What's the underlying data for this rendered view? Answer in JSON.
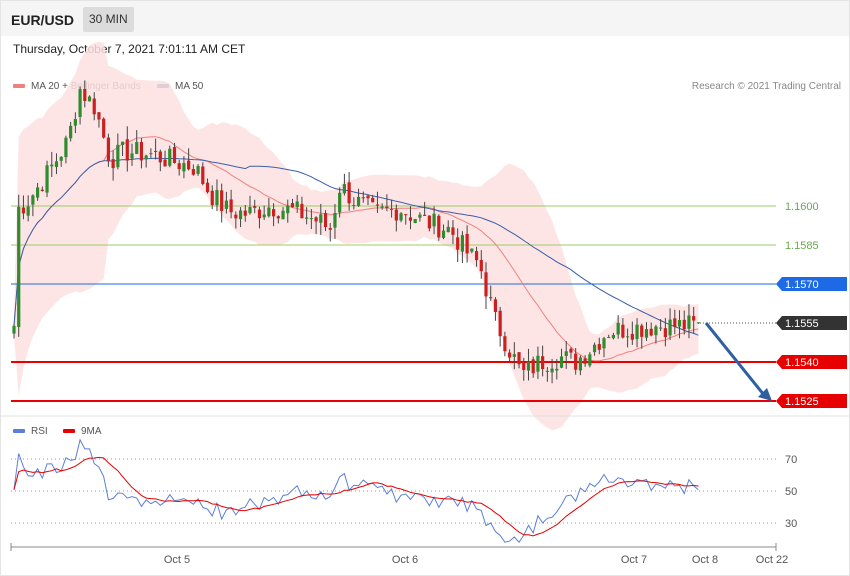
{
  "header": {
    "symbol": "EUR/USD",
    "timeframe": "30 MIN",
    "timestamp": "Thursday, October 7, 2021 7:01:11 AM CET"
  },
  "credit": "Research © 2021 Trading Central",
  "chart_data": {
    "type": "candlestick",
    "y_range": [
      1.1515,
      1.1705
    ],
    "x_labels": [
      "Oct 5",
      "Oct 6",
      "Oct 7",
      "Oct 8",
      "Oct 22"
    ],
    "legend": [
      {
        "name": "MA 20 + Bollinger Bands",
        "color": "#f08080"
      },
      {
        "name": "MA 50",
        "color": "#3a5fa8"
      }
    ],
    "levels": [
      {
        "value": 1.16,
        "label": "1.1600",
        "style": "pivot",
        "color": "#9ccc65"
      },
      {
        "value": 1.1585,
        "label": "1.1585",
        "style": "pivot",
        "color": "#9ccc65"
      },
      {
        "value": 1.157,
        "label": "1.1570",
        "style": "resistance",
        "color": "#1e6ae6"
      },
      {
        "value": 1.1555,
        "label": "1.1555",
        "style": "last",
        "color": "#333333"
      },
      {
        "value": 1.154,
        "label": "1.1540",
        "style": "support",
        "color": "#e60000"
      },
      {
        "value": 1.1525,
        "label": "1.1525",
        "style": "support",
        "color": "#e60000"
      }
    ],
    "forecast_arrow": {
      "from": 1.1555,
      "to": 1.1525,
      "color": "#2e5fa0"
    },
    "rsi": {
      "legend": [
        {
          "name": "RSI",
          "color": "#5b7fd6"
        },
        {
          "name": "9MA",
          "color": "#e60000"
        }
      ],
      "y_range": [
        15,
        85
      ],
      "levels": [
        70,
        50,
        30
      ]
    }
  }
}
